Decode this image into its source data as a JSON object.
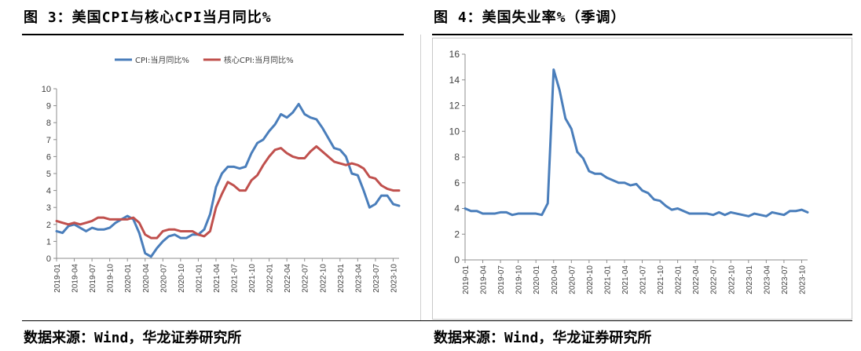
{
  "figure_left": {
    "title": "图 3：美国CPI与核心CPI当月同比%",
    "source": "数据来源：Wind，华龙证券研究所"
  },
  "figure_right": {
    "title": "图 4：美国失业率%（季调）",
    "source": "数据来源：Wind，华龙证券研究所"
  },
  "chart_data": [
    {
      "type": "line",
      "title": "",
      "xlabel": "",
      "ylabel": "",
      "ylim": [
        0,
        10
      ],
      "yticks": [
        0,
        1,
        2,
        3,
        4,
        5,
        6,
        7,
        8,
        9,
        10
      ],
      "grid": false,
      "legend": "top",
      "x": [
        "2019-01",
        "2019-02",
        "2019-03",
        "2019-04",
        "2019-05",
        "2019-06",
        "2019-07",
        "2019-08",
        "2019-09",
        "2019-10",
        "2019-11",
        "2019-12",
        "2020-01",
        "2020-02",
        "2020-03",
        "2020-04",
        "2020-05",
        "2020-06",
        "2020-07",
        "2020-08",
        "2020-09",
        "2020-10",
        "2020-11",
        "2020-12",
        "2021-01",
        "2021-02",
        "2021-03",
        "2021-04",
        "2021-05",
        "2021-06",
        "2021-07",
        "2021-08",
        "2021-09",
        "2021-10",
        "2021-11",
        "2021-12",
        "2022-01",
        "2022-02",
        "2022-03",
        "2022-04",
        "2022-05",
        "2022-06",
        "2022-07",
        "2022-08",
        "2022-09",
        "2022-10",
        "2022-11",
        "2022-12",
        "2023-01",
        "2023-02",
        "2023-03",
        "2023-04",
        "2023-05",
        "2023-06",
        "2023-07",
        "2023-08",
        "2023-09",
        "2023-10",
        "2023-11"
      ],
      "xticks": [
        "2019-01",
        "2019-04",
        "2019-07",
        "2019-10",
        "2020-01",
        "2020-04",
        "2020-07",
        "2020-10",
        "2021-01",
        "2021-04",
        "2021-07",
        "2021-10",
        "2022-01",
        "2022-04",
        "2022-07",
        "2022-10",
        "2023-01",
        "2023-04",
        "2023-07",
        "2023-10"
      ],
      "series": [
        {
          "name": "CPI:当月同比%",
          "color": "#4a7ebb",
          "values": [
            1.6,
            1.5,
            1.9,
            2.0,
            1.8,
            1.6,
            1.8,
            1.7,
            1.7,
            1.8,
            2.1,
            2.3,
            2.5,
            2.3,
            1.5,
            0.3,
            0.1,
            0.6,
            1.0,
            1.3,
            1.4,
            1.2,
            1.2,
            1.4,
            1.4,
            1.7,
            2.6,
            4.2,
            5.0,
            5.4,
            5.4,
            5.3,
            5.4,
            6.2,
            6.8,
            7.0,
            7.5,
            7.9,
            8.5,
            8.3,
            8.6,
            9.1,
            8.5,
            8.3,
            8.2,
            7.7,
            7.1,
            6.5,
            6.4,
            6.0,
            5.0,
            4.9,
            4.0,
            3.0,
            3.2,
            3.7,
            3.7,
            3.2,
            3.1
          ]
        },
        {
          "name": "核心CPI:当月同比%",
          "color": "#c0504d",
          "values": [
            2.2,
            2.1,
            2.0,
            2.1,
            2.0,
            2.1,
            2.2,
            2.4,
            2.4,
            2.3,
            2.3,
            2.3,
            2.3,
            2.4,
            2.1,
            1.4,
            1.2,
            1.2,
            1.6,
            1.7,
            1.7,
            1.6,
            1.6,
            1.6,
            1.4,
            1.3,
            1.6,
            3.0,
            3.8,
            4.5,
            4.3,
            4.0,
            4.0,
            4.6,
            4.9,
            5.5,
            6.0,
            6.4,
            6.5,
            6.2,
            6.0,
            5.9,
            5.9,
            6.3,
            6.6,
            6.3,
            6.0,
            5.7,
            5.6,
            5.5,
            5.6,
            5.5,
            5.3,
            4.8,
            4.7,
            4.3,
            4.1,
            4.0,
            4.0
          ]
        }
      ]
    },
    {
      "type": "line",
      "title": "",
      "xlabel": "",
      "ylabel": "",
      "ylim": [
        0,
        16
      ],
      "yticks": [
        0,
        2,
        4,
        6,
        8,
        10,
        12,
        14,
        16
      ],
      "grid": false,
      "legend": "none",
      "x": [
        "2019-01",
        "2019-02",
        "2019-03",
        "2019-04",
        "2019-05",
        "2019-06",
        "2019-07",
        "2019-08",
        "2019-09",
        "2019-10",
        "2019-11",
        "2019-12",
        "2020-01",
        "2020-02",
        "2020-03",
        "2020-04",
        "2020-05",
        "2020-06",
        "2020-07",
        "2020-08",
        "2020-09",
        "2020-10",
        "2020-11",
        "2020-12",
        "2021-01",
        "2021-02",
        "2021-03",
        "2021-04",
        "2021-05",
        "2021-06",
        "2021-07",
        "2021-08",
        "2021-09",
        "2021-10",
        "2021-11",
        "2021-12",
        "2022-01",
        "2022-02",
        "2022-03",
        "2022-04",
        "2022-05",
        "2022-06",
        "2022-07",
        "2022-08",
        "2022-09",
        "2022-10",
        "2022-11",
        "2022-12",
        "2023-01",
        "2023-02",
        "2023-03",
        "2023-04",
        "2023-05",
        "2023-06",
        "2023-07",
        "2023-08",
        "2023-09",
        "2023-10",
        "2023-11"
      ],
      "xticks": [
        "2019-01",
        "2019-04",
        "2019-07",
        "2019-10",
        "2020-01",
        "2020-04",
        "2020-07",
        "2020-10",
        "2021-01",
        "2021-04",
        "2021-07",
        "2021-10",
        "2022-01",
        "2022-04",
        "2022-07",
        "2022-10",
        "2023-01",
        "2023-04",
        "2023-07",
        "2023-10"
      ],
      "series": [
        {
          "name": "",
          "color": "#4a7ebb",
          "values": [
            4.0,
            3.8,
            3.8,
            3.6,
            3.6,
            3.6,
            3.7,
            3.7,
            3.5,
            3.6,
            3.6,
            3.6,
            3.6,
            3.5,
            4.4,
            14.8,
            13.2,
            11.0,
            10.2,
            8.4,
            7.9,
            6.9,
            6.7,
            6.7,
            6.4,
            6.2,
            6.0,
            6.0,
            5.8,
            5.9,
            5.4,
            5.2,
            4.7,
            4.6,
            4.2,
            3.9,
            4.0,
            3.8,
            3.6,
            3.6,
            3.6,
            3.6,
            3.5,
            3.7,
            3.5,
            3.7,
            3.6,
            3.5,
            3.4,
            3.6,
            3.5,
            3.4,
            3.7,
            3.6,
            3.5,
            3.8,
            3.8,
            3.9,
            3.7
          ]
        }
      ]
    }
  ]
}
